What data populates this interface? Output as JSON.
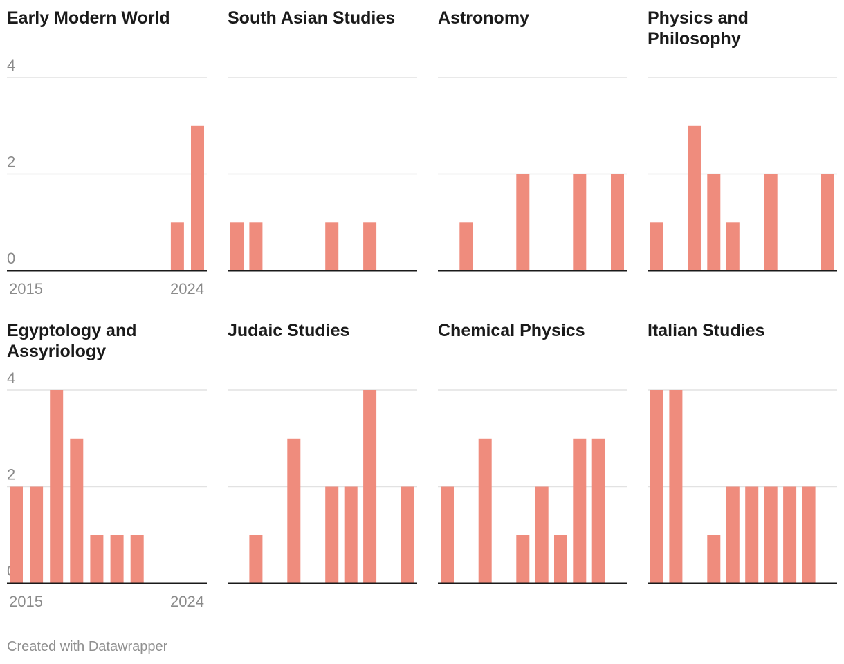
{
  "chart_data": {
    "type": "bar",
    "layout": "small-multiples",
    "x": [
      2015,
      2016,
      2017,
      2018,
      2019,
      2020,
      2021,
      2022,
      2023,
      2024
    ],
    "xticks": [
      "2015",
      "2024"
    ],
    "yticks": [
      0,
      2,
      4
    ],
    "ylim": [
      0,
      4
    ],
    "bar_color": "#ef8c7d",
    "gridline_color": "#e2e2e2",
    "baseline_color": "#1a1a1a",
    "series": [
      {
        "name": "Early Modern World",
        "title_lines": [
          "Early Modern World"
        ],
        "values": [
          0,
          0,
          0,
          0,
          0,
          0,
          0,
          0,
          1,
          3
        ]
      },
      {
        "name": "South Asian Studies",
        "title_lines": [
          "South Asian Studies"
        ],
        "values": [
          1,
          1,
          0,
          0,
          0,
          1,
          0,
          1,
          0,
          0
        ]
      },
      {
        "name": "Astronomy",
        "title_lines": [
          "Astronomy"
        ],
        "values": [
          0,
          1,
          0,
          0,
          2,
          0,
          0,
          2,
          0,
          2
        ]
      },
      {
        "name": "Physics and Philosophy",
        "title_lines": [
          "Physics and",
          "Philosophy"
        ],
        "values": [
          1,
          0,
          3,
          2,
          1,
          0,
          2,
          0,
          0,
          2
        ]
      },
      {
        "name": "Egyptology and Assyriology",
        "title_lines": [
          "Egyptology and",
          "Assyriology"
        ],
        "values": [
          2,
          2,
          4,
          3,
          1,
          1,
          1,
          0,
          0,
          0
        ]
      },
      {
        "name": "Judaic Studies",
        "title_lines": [
          "Judaic Studies"
        ],
        "values": [
          0,
          1,
          0,
          3,
          0,
          2,
          2,
          4,
          0,
          2
        ]
      },
      {
        "name": "Chemical Physics",
        "title_lines": [
          "Chemical Physics"
        ],
        "values": [
          2,
          0,
          3,
          0,
          1,
          2,
          1,
          3,
          3,
          0
        ]
      },
      {
        "name": "Italian Studies",
        "title_lines": [
          "Italian Studies"
        ],
        "values": [
          4,
          4,
          0,
          1,
          2,
          2,
          2,
          2,
          2,
          0
        ]
      }
    ]
  },
  "footer": {
    "credit": "Created with Datawrapper"
  }
}
